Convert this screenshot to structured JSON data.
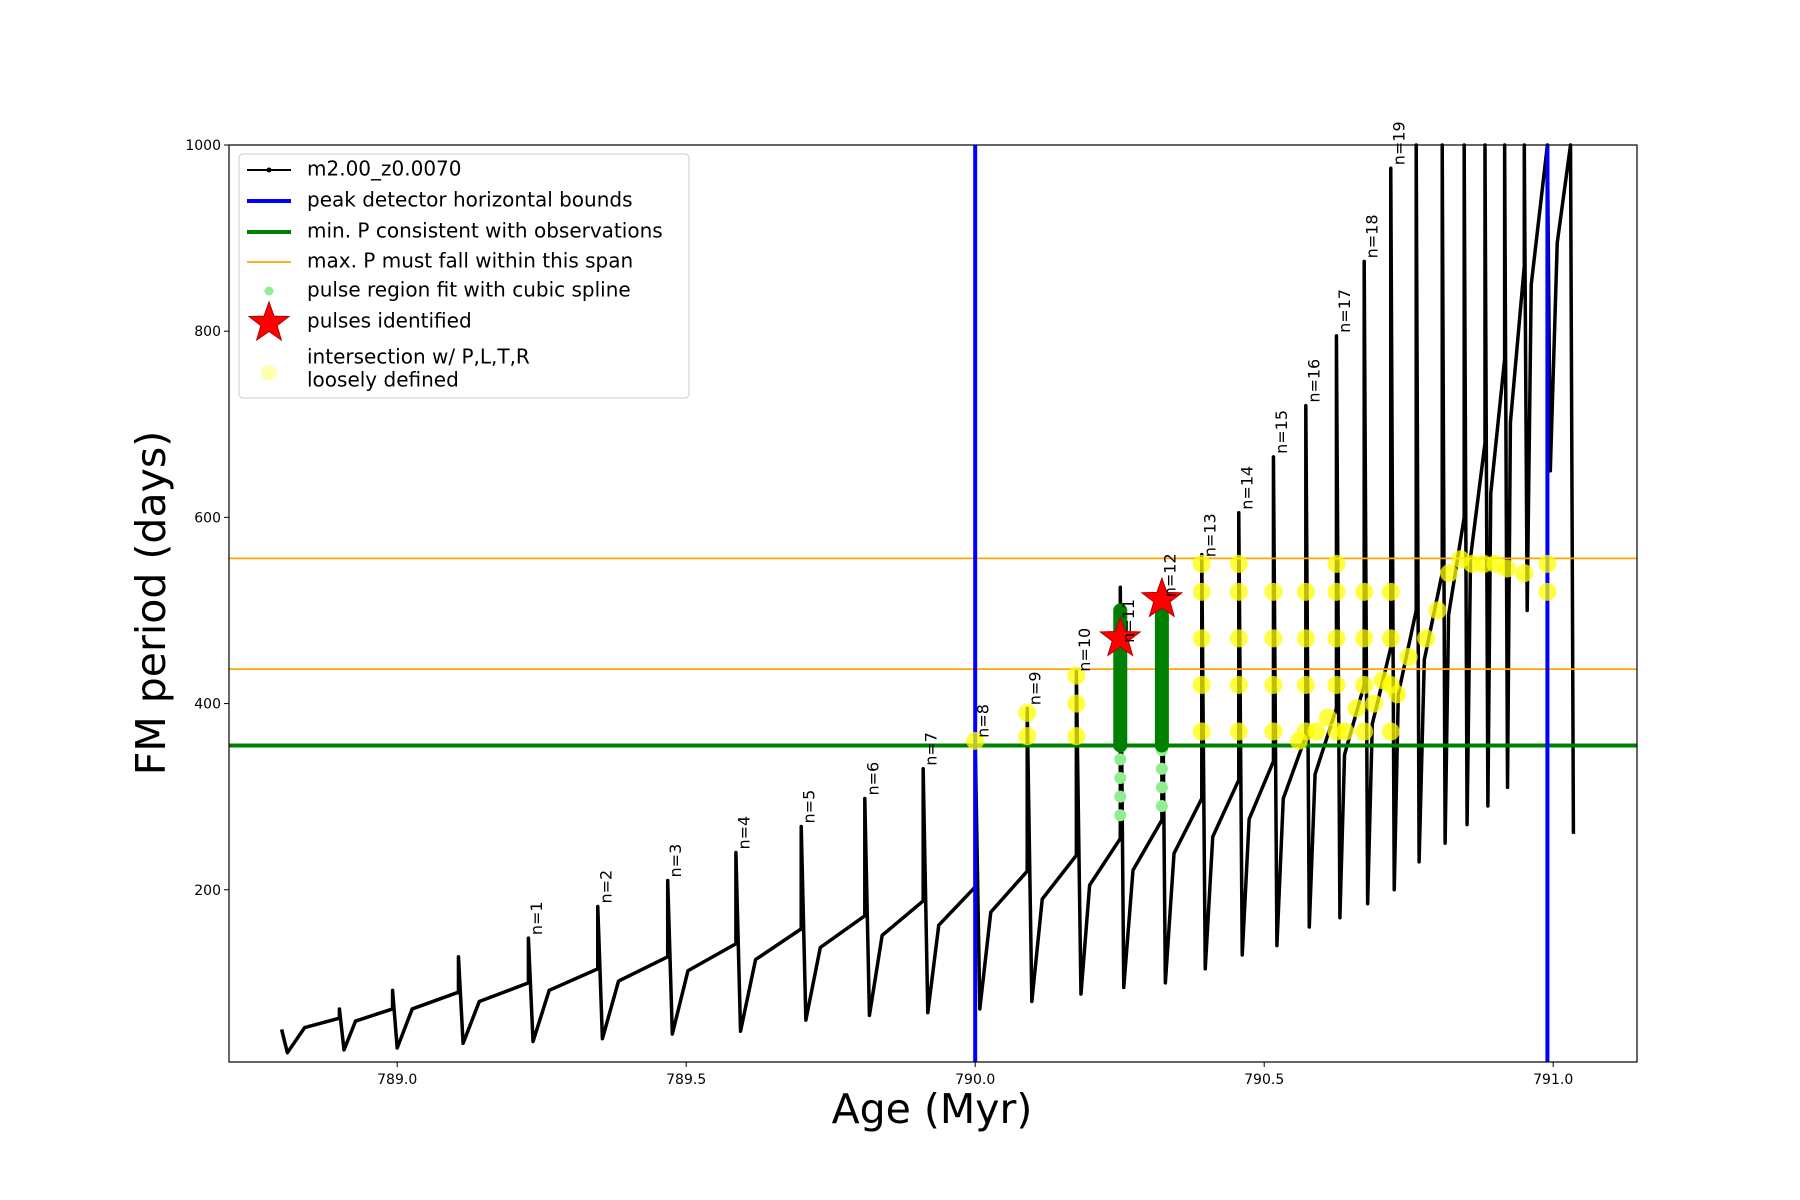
{
  "chart_data": {
    "type": "line",
    "xlabel": "Age (Myr)",
    "ylabel": "FM period (days)",
    "xlim": [
      788.709,
      791.145
    ],
    "ylim": [
      15,
      1000
    ],
    "xticks": [
      {
        "value": 789,
        "label": "789.0"
      },
      {
        "value": 789.5,
        "label": "789.5"
      },
      {
        "value": 790,
        "label": "790.0"
      },
      {
        "value": 790.5,
        "label": "790.5"
      },
      {
        "value": 791,
        "label": "791.0"
      }
    ],
    "yticks": [
      200,
      400,
      600,
      800,
      1000
    ],
    "legend": "upper left",
    "series": [
      {
        "name": "m2.00_z0.0070",
        "color": "#000000",
        "x": [
          788.8,
          788.81,
          788.84,
          788.9,
          788.9,
          788.908,
          788.928,
          788.992,
          788.992,
          789.0,
          789.026,
          789.106,
          789.106,
          789.114,
          789.142,
          789.227,
          789.227,
          789.235,
          789.263,
          789.347,
          789.347,
          789.355,
          789.383,
          789.468,
          789.468,
          789.476,
          789.503,
          789.586,
          789.586,
          789.594,
          789.62,
          789.699,
          789.699,
          789.707,
          789.732,
          789.809,
          789.809,
          789.817,
          789.839,
          789.91,
          789.91,
          789.918,
          789.937,
          790.0,
          790.0,
          790.008,
          790.027,
          790.09,
          790.09,
          790.098,
          790.116,
          790.175,
          790.175,
          790.183,
          790.198,
          790.251,
          790.251,
          790.257,
          790.273,
          790.323,
          790.323,
          790.329,
          790.344,
          790.392,
          790.392,
          790.398,
          790.411,
          790.456,
          790.456,
          790.462,
          790.474,
          790.516,
          790.516,
          790.522,
          790.533,
          790.572,
          790.572,
          790.578,
          790.588,
          790.625,
          790.625,
          790.631,
          790.639,
          790.673,
          790.673,
          790.679,
          790.687,
          790.719,
          790.719,
          790.725,
          790.732,
          790.763,
          790.763,
          790.768,
          790.777,
          790.808,
          790.808,
          790.813,
          790.819,
          790.846,
          790.846,
          790.851,
          790.857,
          790.882,
          790.882,
          790.887,
          790.892,
          790.916,
          790.916,
          790.921,
          790.926,
          790.95,
          790.95,
          790.955,
          790.962,
          790.99,
          790.99,
          790.995,
          791.007,
          791.03,
          791.03,
          791.035
        ],
        "values": [
          50,
          25,
          52,
          62,
          72,
          28,
          59,
          72,
          92,
          30,
          72,
          90,
          128,
          35,
          80,
          100,
          148,
          37,
          92,
          115,
          182,
          40,
          102,
          128,
          210,
          45,
          113,
          142,
          240,
          48,
          125,
          158,
          268,
          60,
          138,
          172,
          298,
          65,
          151,
          188,
          330,
          68,
          162,
          203,
          360,
          72,
          176,
          220,
          395,
          80,
          190,
          237,
          435,
          88,
          205,
          255,
          525,
          95,
          221,
          275,
          520,
          100,
          239,
          298,
          560,
          115,
          257,
          318,
          605,
          130,
          276,
          338,
          665,
          140,
          298,
          365,
          720,
          160,
          324,
          395,
          795,
          170,
          345,
          420,
          875,
          185,
          378,
          460,
          975,
          200,
          410,
          500,
          1000,
          230,
          447,
          540,
          1000,
          250,
          495,
          600,
          1000,
          270,
          557,
          680,
          1000,
          290,
          626,
          770,
          1000,
          310,
          702,
          870,
          1000,
          500,
          850,
          1000,
          1000,
          650,
          895,
          1000,
          1000,
          260
        ]
      }
    ],
    "vlines": [
      {
        "name": "peak detector horizontal bounds",
        "color": "#0000ff",
        "x": [
          790.0,
          790.99
        ]
      }
    ],
    "hlines": [
      {
        "name": "min. P consistent with observations",
        "color": "#008000",
        "y": [
          355
        ]
      },
      {
        "name": "max. P must fall within this span",
        "color": "#ffa500",
        "y": [
          437,
          556
        ]
      }
    ],
    "scatter": [
      {
        "name": "pulse region fit with cubic spline",
        "color": "#90ee90",
        "marker": "dot",
        "x": [
          790.251,
          790.251,
          790.251,
          790.251,
          790.323,
          790.323,
          790.323,
          790.323
        ],
        "y": [
          280,
          300,
          320,
          340,
          290,
          310,
          330,
          350
        ]
      },
      {
        "name": "pulses identified",
        "color": "#ff0000",
        "marker": "star",
        "x": [
          790.251,
          790.323
        ],
        "y": [
          470,
          512
        ]
      },
      {
        "name": [
          "intersection w/ P,L,T,R",
          "loosely defined"
        ],
        "color": "#ffff00",
        "marker": "circle",
        "x": [
          790.0,
          790.09,
          790.09,
          790.175,
          790.175,
          790.175,
          790.323,
          790.392,
          790.392,
          790.392,
          790.392,
          790.392,
          790.456,
          790.456,
          790.456,
          790.456,
          790.456,
          790.516,
          790.516,
          790.516,
          790.516,
          790.572,
          790.572,
          790.572,
          790.572,
          790.625,
          790.625,
          790.625,
          790.625,
          790.625,
          790.673,
          790.673,
          790.673,
          790.673,
          790.719,
          790.719,
          790.719,
          790.719,
          790.56,
          790.59,
          790.61,
          790.64,
          790.66,
          790.69,
          790.705,
          790.73,
          790.75,
          790.78,
          790.8,
          790.82,
          790.84,
          790.86,
          790.88,
          790.9,
          790.92,
          790.95,
          790.99,
          790.99
        ],
        "y": [
          360,
          365,
          390,
          365,
          400,
          430,
          512,
          370,
          420,
          470,
          520,
          550,
          370,
          420,
          470,
          520,
          550,
          370,
          420,
          470,
          520,
          370,
          420,
          470,
          520,
          370,
          420,
          470,
          520,
          550,
          370,
          420,
          470,
          520,
          370,
          420,
          470,
          520,
          360,
          370,
          385,
          370,
          395,
          400,
          425,
          410,
          450,
          470,
          500,
          540,
          555,
          550,
          550,
          550,
          545,
          540,
          520,
          550
        ]
      }
    ],
    "spans": {
      "color": "#008000",
      "x": [
        790.251,
        790.323
      ],
      "low": [
        355,
        355
      ],
      "high": [
        500,
        495
      ]
    },
    "annotations": [
      {
        "text": "n=1",
        "x": 789.227,
        "y": 148
      },
      {
        "text": "n=2",
        "x": 789.347,
        "y": 182
      },
      {
        "text": "n=3",
        "x": 789.468,
        "y": 210
      },
      {
        "text": "n=4",
        "x": 789.586,
        "y": 240
      },
      {
        "text": "n=5",
        "x": 789.699,
        "y": 268
      },
      {
        "text": "n=6",
        "x": 789.809,
        "y": 298
      },
      {
        "text": "n=7",
        "x": 789.91,
        "y": 330
      },
      {
        "text": "n=8",
        "x": 790.0,
        "y": 360
      },
      {
        "text": "n=9",
        "x": 790.09,
        "y": 395
      },
      {
        "text": "n=10",
        "x": 790.175,
        "y": 431
      },
      {
        "text": "n=11",
        "x": 790.251,
        "y": 462
      },
      {
        "text": "n=12",
        "x": 790.323,
        "y": 511
      },
      {
        "text": "n=13",
        "x": 790.392,
        "y": 554
      },
      {
        "text": "n=14",
        "x": 790.456,
        "y": 605
      },
      {
        "text": "n=15",
        "x": 790.516,
        "y": 665
      },
      {
        "text": "n=16",
        "x": 790.572,
        "y": 720
      },
      {
        "text": "n=17",
        "x": 790.625,
        "y": 795
      },
      {
        "text": "n=18",
        "x": 790.673,
        "y": 875
      },
      {
        "text": "n=19",
        "x": 790.719,
        "y": 975
      }
    ]
  }
}
